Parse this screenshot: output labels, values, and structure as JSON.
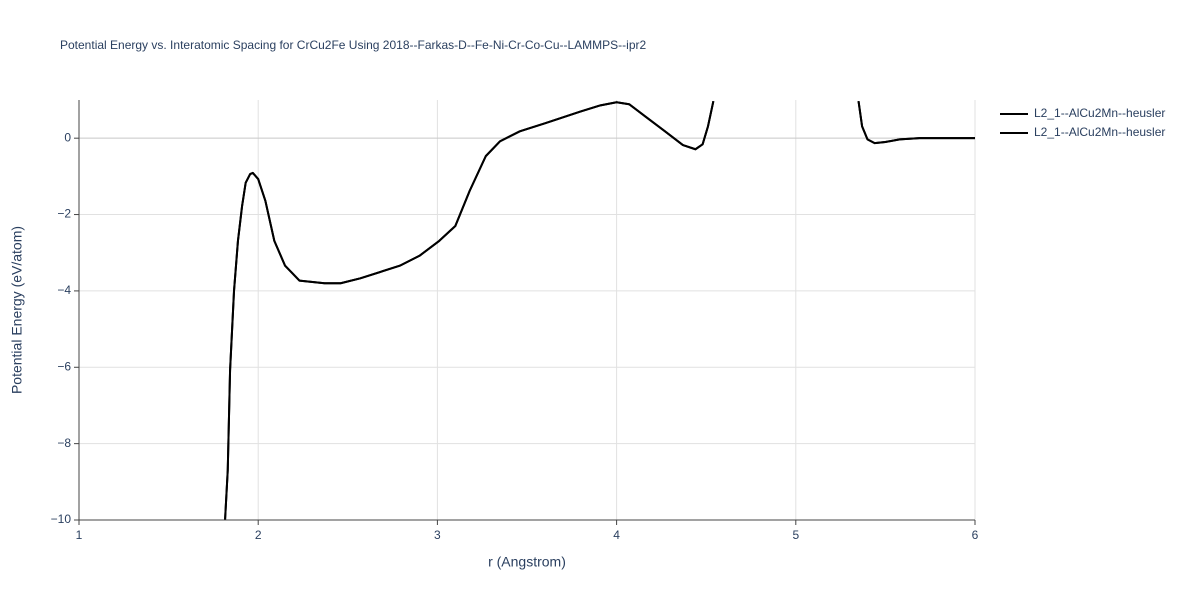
{
  "chart_data": {
    "type": "line",
    "title": "Potential Energy vs. Interatomic Spacing for CrCu2Fe Using 2018--Farkas-D--Fe-Ni-Cr-Co-Cu--LAMMPS--ipr2",
    "x_label": "r (Angstrom)",
    "y_label": "Potential Energy (eV/atom)",
    "x": [
      1.815,
      1.83,
      1.843,
      1.865,
      1.887,
      1.91,
      1.93,
      1.955,
      1.97,
      2.0,
      2.04,
      2.09,
      2.15,
      2.23,
      2.37,
      2.46,
      2.57,
      2.79,
      2.9,
      3.01,
      3.1,
      3.18,
      3.27,
      3.35,
      3.46,
      3.6,
      3.8,
      3.91,
      4.0,
      4.07,
      4.16,
      4.27,
      4.37,
      4.44,
      4.48,
      4.51,
      4.54,
      4.9,
      5.35,
      5.37,
      5.4,
      5.44,
      5.5,
      5.58,
      5.69,
      6.0
    ],
    "series": [
      {
        "name": "L2_1--AlCu2Mn--heusler",
        "color": "#000000",
        "values": [
          -10,
          -8.7,
          -6.08,
          -4.0,
          -2.69,
          -1.78,
          -1.17,
          -0.94,
          -0.91,
          -1.07,
          -1.64,
          -2.69,
          -3.34,
          -3.73,
          -3.8,
          -3.8,
          -3.67,
          -3.34,
          -3.08,
          -2.69,
          -2.3,
          -1.38,
          -0.47,
          -0.08,
          0.18,
          0.39,
          0.7,
          0.86,
          0.94,
          0.89,
          0.57,
          0.18,
          -0.18,
          -0.29,
          -0.16,
          0.31,
          0.97,
          null,
          0.97,
          0.31,
          -0.03,
          -0.13,
          -0.1,
          -0.03,
          0,
          0
        ]
      },
      {
        "name": "L2_1--AlCu2Mn--heusler",
        "color": "#000000",
        "values": [
          -10,
          -8.7,
          -6.08,
          -4.0,
          -2.69,
          -1.78,
          -1.17,
          -0.94,
          -0.91,
          -1.07,
          -1.64,
          -2.69,
          -3.34,
          -3.73,
          -3.8,
          -3.8,
          -3.67,
          -3.34,
          -3.08,
          -2.69,
          -2.3,
          -1.38,
          -0.47,
          -0.08,
          0.18,
          0.39,
          0.7,
          0.86,
          0.94,
          0.89,
          0.57,
          0.18,
          -0.18,
          -0.29,
          -0.16,
          0.31,
          0.97,
          null,
          0.97,
          0.31,
          -0.03,
          -0.13,
          -0.1,
          -0.03,
          0,
          0
        ]
      }
    ],
    "xlim": [
      1,
      6
    ],
    "xticks": [
      1,
      2,
      3,
      4,
      5,
      6
    ],
    "ylim": [
      -10,
      1
    ],
    "yticks": [
      {
        "value": -10,
        "label": "−10"
      },
      {
        "value": -8,
        "label": "−8"
      },
      {
        "value": -6,
        "label": "−6"
      },
      {
        "value": -4,
        "label": "−4"
      },
      {
        "value": -2,
        "label": "−2"
      },
      0
    ],
    "grid": true,
    "legend_position": "right"
  }
}
